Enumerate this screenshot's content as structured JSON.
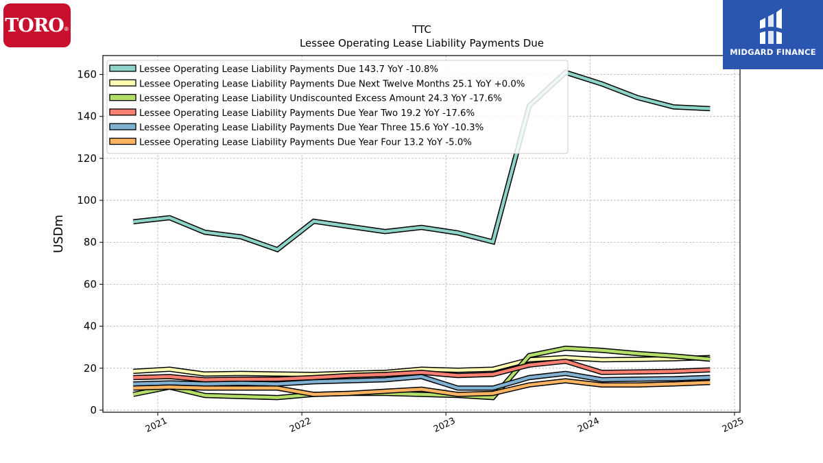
{
  "branding": {
    "left_logo_text": "TORO",
    "left_logo_reg": "®",
    "right_logo_text": "MIDGARD FINANCE",
    "left_logo_color": "#c8102e",
    "right_logo_color": "#2a56b0"
  },
  "chart_data": {
    "type": "line",
    "title": "TTC",
    "subtitle": "Lessee Operating Lease Liability Payments Due",
    "xlabel": "",
    "ylabel": "USDm",
    "xlim": [
      "2020-08-15",
      "2025-01-15"
    ],
    "ylim": [
      -1,
      169
    ],
    "yticks": [
      0,
      20,
      40,
      60,
      80,
      100,
      120,
      140,
      160
    ],
    "xticks": [
      "2021",
      "2022",
      "2023",
      "2024",
      "2025"
    ],
    "grid": true,
    "legend_position": "top-left",
    "x": [
      "2020-10-31",
      "2021-01-31",
      "2021-04-30",
      "2021-07-31",
      "2021-10-31",
      "2022-01-31",
      "2022-04-30",
      "2022-07-31",
      "2022-10-31",
      "2023-01-31",
      "2023-04-30",
      "2023-07-31",
      "2023-10-31",
      "2024-01-31",
      "2024-04-30",
      "2024-07-31",
      "2024-10-31"
    ],
    "series": [
      {
        "name": "Lessee Operating Lease Liability Payments Due",
        "legend": "Lessee Operating Lease Liability Payments Due  143.7 YoY -10.8%",
        "color": "#8dd3c7",
        "values": [
          89.8,
          91.7,
          84.8,
          82.6,
          76.5,
          90.0,
          87.6,
          85.1,
          87.1,
          84.5,
          80.2,
          145.0,
          161.0,
          155.5,
          149.0,
          144.5,
          143.7
        ]
      },
      {
        "name": "Lessee Operating Lease Liability Payments Due Next Twelve Months",
        "legend": "Lessee Operating Lease Liability Payments Due Next Twelve Months  25.1 YoY +0.0%",
        "color": "#ffffb3",
        "values": [
          18.5,
          19.5,
          17.2,
          17.5,
          17.2,
          17.0,
          17.6,
          18.0,
          19.5,
          19.0,
          19.5,
          24.0,
          25.1,
          24.0,
          24.2,
          24.5,
          25.1
        ]
      },
      {
        "name": "Lessee Operating Lease Liability Undiscounted Excess Amount",
        "legend": "Lessee Operating Lease Liability Undiscounted Excess Amount  24.3 YoY -17.6%",
        "color": "#b3de69",
        "values": [
          7.5,
          11.0,
          7.0,
          6.5,
          6.0,
          7.5,
          8.0,
          8.0,
          7.5,
          7.0,
          6.0,
          26.0,
          29.5,
          28.5,
          27.0,
          25.8,
          24.3
        ]
      },
      {
        "name": "Lessee Operating Lease Liability Payments Due Year Two",
        "legend": "Lessee Operating Lease Liability Payments Due Year Two  19.2 YoY -17.6%",
        "color": "#fb8072",
        "values": [
          15.5,
          16.0,
          14.5,
          14.8,
          14.8,
          15.5,
          16.5,
          17.0,
          18.0,
          16.5,
          17.0,
          21.5,
          23.3,
          18.0,
          18.2,
          18.5,
          19.2
        ]
      },
      {
        "name": "Lessee Operating Lease Liability Payments Due Year Three",
        "legend": "Lessee Operating Lease Liability Payments Due Year Three  15.6 YoY -10.3%",
        "color": "#80b1d3",
        "values": [
          12.5,
          13.0,
          12.5,
          12.8,
          12.5,
          13.5,
          14.0,
          14.5,
          16.0,
          10.5,
          10.5,
          15.5,
          17.5,
          14.5,
          14.8,
          15.0,
          15.6
        ]
      },
      {
        "name": "Lessee Operating Lease Liability Payments Due Year Four",
        "legend": "Lessee Operating Lease Liability Payments Due Year Four  13.2 YoY -5.0%",
        "color": "#fdb462",
        "values": [
          10.5,
          11.0,
          10.5,
          10.5,
          10.5,
          7.5,
          8.0,
          9.0,
          10.0,
          7.5,
          8.0,
          12.0,
          14.0,
          12.0,
          12.0,
          12.5,
          13.2
        ]
      }
    ]
  }
}
